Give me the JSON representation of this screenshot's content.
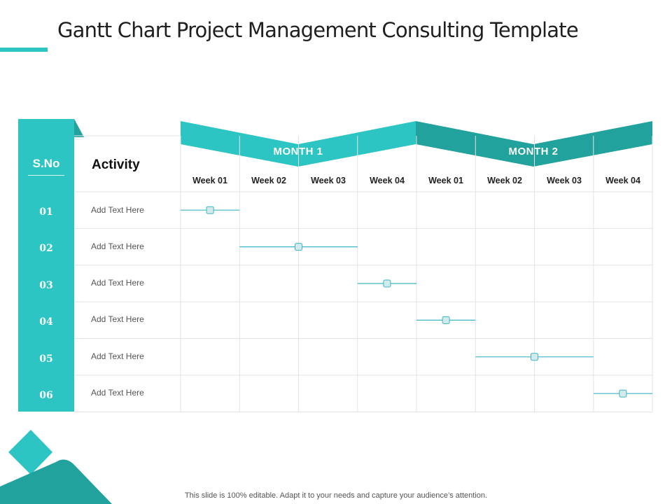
{
  "colors": {
    "teal": "#2cc5c3",
    "teal_dark": "#22a29d",
    "grid": "#e3e3e3",
    "bar": "#3bb6c3",
    "marker_fill": "#d3eaea"
  },
  "slide": {
    "title": "Gantt Chart Project Management Consulting Template",
    "footer": "This slide is 100% editable. Adapt it to your needs and capture your audience’s attention."
  },
  "table": {
    "sno_header": "S.No",
    "activity_header": "Activity",
    "months": [
      {
        "label": "MONTH 1"
      },
      {
        "label": "MONTH 2"
      }
    ],
    "weeks": [
      "Week 01",
      "Week 02",
      "Week 03",
      "Week 04",
      "Week 01",
      "Week 02",
      "Week 03",
      "Week 04"
    ],
    "rows": [
      {
        "number": "01",
        "activity": "Add Text Here",
        "start_week": 1,
        "end_week": 1,
        "marker_week": 1
      },
      {
        "number": "02",
        "activity": "Add Text Here",
        "start_week": 2,
        "end_week": 3,
        "marker_week": 2.5
      },
      {
        "number": "03",
        "activity": "Add Text Here",
        "start_week": 4,
        "end_week": 4,
        "marker_week": 4
      },
      {
        "number": "04",
        "activity": "Add Text Here",
        "start_week": 5,
        "end_week": 5,
        "marker_week": 5
      },
      {
        "number": "05",
        "activity": "Add Text Here",
        "start_week": 6,
        "end_week": 7,
        "marker_week": 6.5
      },
      {
        "number": "06",
        "activity": "Add Text Here",
        "start_week": 8,
        "end_week": 8,
        "marker_week": 8
      }
    ]
  }
}
